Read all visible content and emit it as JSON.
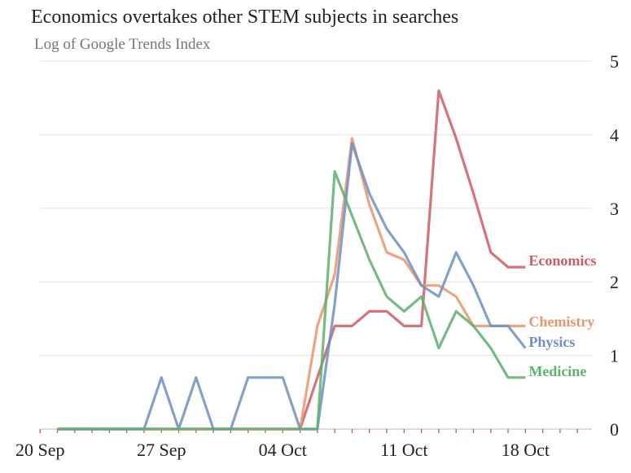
{
  "chart_data": {
    "type": "line",
    "title": "Economics overtakes other STEM subjects in searches",
    "subtitle": "Log of Google Trends Index",
    "xlabel": "",
    "ylabel": "",
    "x": [
      "2020-09-21",
      "2020-09-22",
      "2020-09-23",
      "2020-09-24",
      "2020-09-25",
      "2020-09-26",
      "2020-09-27",
      "2020-09-28",
      "2020-09-29",
      "2020-09-30",
      "2020-10-01",
      "2020-10-02",
      "2020-10-03",
      "2020-10-04",
      "2020-10-05",
      "2020-10-06",
      "2020-10-07",
      "2020-10-08",
      "2020-10-09",
      "2020-10-10",
      "2020-10-11",
      "2020-10-12",
      "2020-10-13",
      "2020-10-14",
      "2020-10-15",
      "2020-10-16",
      "2020-10-17",
      "2020-10-18"
    ],
    "xticks": [
      "20 Sep",
      "27 Sep",
      "04 Oct",
      "11 Oct",
      "18 Oct"
    ],
    "yticks": [
      0,
      1,
      2,
      3,
      4,
      5
    ],
    "ylim": [
      0,
      5
    ],
    "grid": true,
    "legend": "direct labels at line ends (right)",
    "series": [
      {
        "name": "Economics",
        "color": "#cc5c64",
        "values": [
          0,
          0,
          0,
          0,
          0,
          0,
          0,
          0,
          0,
          0,
          0,
          0,
          0,
          0,
          0,
          0.7,
          1.4,
          1.4,
          1.6,
          1.6,
          1.4,
          1.4,
          4.6,
          3.95,
          3.2,
          2.4,
          2.2,
          2.2
        ]
      },
      {
        "name": "Chemistry",
        "color": "#e8956a",
        "values": [
          0,
          0,
          0,
          0,
          0,
          0,
          0,
          0,
          0,
          0,
          0,
          0,
          0,
          0,
          0,
          1.4,
          2.1,
          3.95,
          3.05,
          2.4,
          2.3,
          1.95,
          1.95,
          1.8,
          1.4,
          1.4,
          1.4,
          1.4
        ]
      },
      {
        "name": "Physics",
        "color": "#6f8fc4",
        "values": [
          0,
          0,
          0,
          0,
          0,
          0,
          0.7,
          0,
          0.7,
          0,
          0,
          0.7,
          0.7,
          0.7,
          0,
          0,
          1.7,
          3.88,
          3.2,
          2.72,
          2.4,
          1.95,
          1.8,
          2.4,
          1.95,
          1.4,
          1.4,
          1.1
        ]
      },
      {
        "name": "Medicine",
        "color": "#5db06d",
        "values": [
          0,
          0,
          0,
          0,
          0,
          0,
          0,
          0,
          0,
          0,
          0,
          0,
          0,
          0,
          0,
          0,
          3.5,
          2.9,
          2.3,
          1.8,
          1.6,
          1.8,
          1.1,
          1.6,
          1.4,
          1.1,
          0.7,
          0.7
        ]
      }
    ]
  }
}
